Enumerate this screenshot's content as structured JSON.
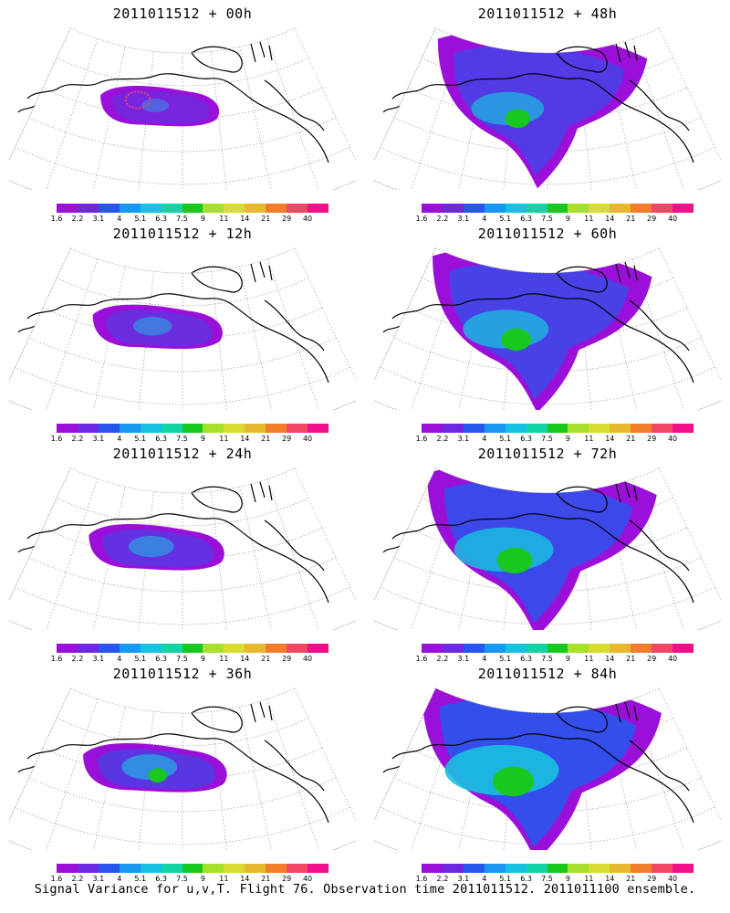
{
  "colorbar": {
    "colors": [
      "#9b10d8",
      "#6e28e0",
      "#2855ec",
      "#1898f0",
      "#19c1e0",
      "#13d3a4",
      "#18c81e",
      "#a6e02c",
      "#d8dc30",
      "#e7b82e",
      "#f17d2b",
      "#f04864",
      "#f0108c"
    ],
    "labels": [
      "1.6",
      "2.2",
      "3.1",
      "4",
      "5.1",
      "6.3",
      "7.5",
      "9",
      "11",
      "14",
      "21",
      "29",
      "40"
    ]
  },
  "panels": [
    {
      "title": "2011011512 + 00h",
      "spread": 0.0
    },
    {
      "title": "2011011512 + 48h",
      "spread": 0.55
    },
    {
      "title": "2011011512 + 12h",
      "spread": 0.2
    },
    {
      "title": "2011011512 + 60h",
      "spread": 0.7
    },
    {
      "title": "2011011512 + 24h",
      "spread": 0.3
    },
    {
      "title": "2011011512 + 72h",
      "spread": 0.85
    },
    {
      "title": "2011011512 + 36h",
      "spread": 0.45
    },
    {
      "title": "2011011512 + 84h",
      "spread": 1.0
    }
  ],
  "caption": "Signal Variance for u,v,T. Flight 76. Observation time 2011011512. 2011011100 ensemble.",
  "icons": {
    "map": "polar-stereographic-map",
    "coast": "coastline-lines",
    "grid": "lat-lon-grid-lines"
  }
}
